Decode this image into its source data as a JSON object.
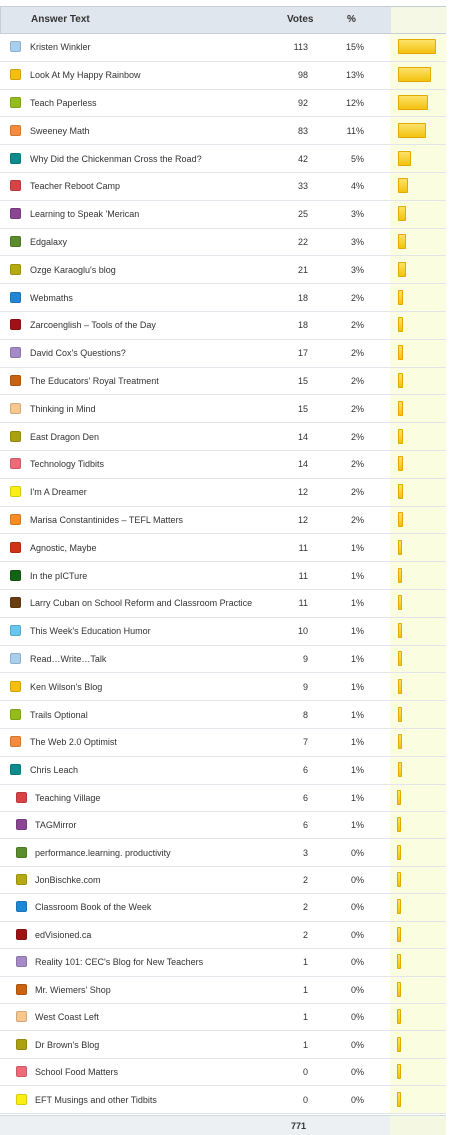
{
  "header": {
    "answer_label": "Answer Text",
    "votes_label": "Votes",
    "pct_label": "%"
  },
  "rows": [
    {
      "text": "Kristen Winkler",
      "votes": "113",
      "pct": "15%",
      "share": 0.15,
      "color": "#a8cfee"
    },
    {
      "text": "Look At My Happy Rainbow",
      "votes": "98",
      "pct": "13%",
      "share": 0.13,
      "color": "#f6be12"
    },
    {
      "text": "Teach Paperless",
      "votes": "92",
      "pct": "12%",
      "share": 0.12,
      "color": "#94bc1c"
    },
    {
      "text": "Sweeney Math",
      "votes": "83",
      "pct": "11%",
      "share": 0.11,
      "color": "#f68b3c"
    },
    {
      "text": "Why Did the Chickenman Cross the Road?",
      "votes": "42",
      "pct": "5%",
      "share": 0.05,
      "color": "#0e8b8b"
    },
    {
      "text": "Teacher Reboot Camp",
      "votes": "33",
      "pct": "4%",
      "share": 0.04,
      "color": "#d84446"
    },
    {
      "text": "Learning to Speak 'Merican",
      "votes": "25",
      "pct": "3%",
      "share": 0.03,
      "color": "#8a4593"
    },
    {
      "text": "Edgalaxy",
      "votes": "22",
      "pct": "3%",
      "share": 0.03,
      "color": "#5a8b2c"
    },
    {
      "text": "Ozge Karaoglu's blog",
      "votes": "21",
      "pct": "3%",
      "share": 0.03,
      "color": "#b4aa14"
    },
    {
      "text": "Webmaths",
      "votes": "18",
      "pct": "2%",
      "share": 0.02,
      "color": "#1e88d6"
    },
    {
      "text": "Zarcoenglish – Tools of the Day",
      "votes": "18",
      "pct": "2%",
      "share": 0.02,
      "color": "#9e1216"
    },
    {
      "text": "David Cox's Questions?",
      "votes": "17",
      "pct": "2%",
      "share": 0.02,
      "color": "#a48ac6"
    },
    {
      "text": "The Educators' Royal Treatment",
      "votes": "15",
      "pct": "2%",
      "share": 0.02,
      "color": "#c8620e"
    },
    {
      "text": "Thinking in Mind",
      "votes": "15",
      "pct": "2%",
      "share": 0.02,
      "color": "#f6c78e"
    },
    {
      "text": "East Dragon Den",
      "votes": "14",
      "pct": "2%",
      "share": 0.02,
      "color": "#aaa012"
    },
    {
      "text": "Technology Tidbits",
      "votes": "14",
      "pct": "2%",
      "share": 0.02,
      "color": "#ee6a78"
    },
    {
      "text": "I'm A Dreamer",
      "votes": "12",
      "pct": "2%",
      "share": 0.02,
      "color": "#fbee12"
    },
    {
      "text": "Marisa Constantinides – TEFL Matters",
      "votes": "12",
      "pct": "2%",
      "share": 0.02,
      "color": "#f68c22"
    },
    {
      "text": "Agnostic, Maybe",
      "votes": "11",
      "pct": "1%",
      "share": 0.01,
      "color": "#cc3414"
    },
    {
      "text": "In the pICTure",
      "votes": "11",
      "pct": "1%",
      "share": 0.01,
      "color": "#126414"
    },
    {
      "text": "Larry Cuban on School Reform and Classroom Practice",
      "votes": "11",
      "pct": "1%",
      "share": 0.01,
      "color": "#6a3c12"
    },
    {
      "text": "This Week's Education Humor",
      "votes": "10",
      "pct": "1%",
      "share": 0.01,
      "color": "#66c6ee"
    },
    {
      "text": "Read…Write…Talk",
      "votes": "9",
      "pct": "1%",
      "share": 0.01,
      "color": "#a8cfee"
    },
    {
      "text": "Ken Wilson's Blog",
      "votes": "9",
      "pct": "1%",
      "share": 0.01,
      "color": "#f6be12"
    },
    {
      "text": "Trails Optional",
      "votes": "8",
      "pct": "1%",
      "share": 0.01,
      "color": "#94bc1c"
    },
    {
      "text": "The Web 2.0 Optimist",
      "votes": "7",
      "pct": "1%",
      "share": 0.01,
      "color": "#f68b3c"
    },
    {
      "text": "Chris Leach",
      "votes": "6",
      "pct": "1%",
      "share": 0.01,
      "color": "#0e8b8b"
    },
    {
      "text": "Teaching Village",
      "votes": "6",
      "pct": "1%",
      "share": 0.01,
      "color": "#d84446"
    },
    {
      "text": "TAGMirror",
      "votes": "6",
      "pct": "1%",
      "share": 0.01,
      "color": "#8a4593"
    },
    {
      "text": "performance.learning. productivity",
      "votes": "3",
      "pct": "0%",
      "share": 0,
      "color": "#5a8b2c"
    },
    {
      "text": "JonBischke.com",
      "votes": "2",
      "pct": "0%",
      "share": 0,
      "color": "#b4aa14"
    },
    {
      "text": "Classroom Book of the Week",
      "votes": "2",
      "pct": "0%",
      "share": 0,
      "color": "#1e88d6"
    },
    {
      "text": "edVisioned.ca",
      "votes": "2",
      "pct": "0%",
      "share": 0,
      "color": "#9e1216"
    },
    {
      "text": "Reality 101: CEC's Blog for New Teachers",
      "votes": "1",
      "pct": "0%",
      "share": 0,
      "color": "#a48ac6"
    },
    {
      "text": "Mr. Wiemers' Shop",
      "votes": "1",
      "pct": "0%",
      "share": 0,
      "color": "#c8620e"
    },
    {
      "text": "West Coast Left",
      "votes": "1",
      "pct": "0%",
      "share": 0,
      "color": "#f6c78e"
    },
    {
      "text": "Dr Brown's Blog",
      "votes": "1",
      "pct": "0%",
      "share": 0,
      "color": "#aaa012"
    },
    {
      "text": "School Food Matters",
      "votes": "0",
      "pct": "0%",
      "share": 0,
      "color": "#ee6a78"
    },
    {
      "text": "EFT Musings and other Tidbits",
      "votes": "0",
      "pct": "0%",
      "share": 0,
      "color": "#fbee12"
    }
  ],
  "footer": {
    "total_votes": "771"
  }
}
